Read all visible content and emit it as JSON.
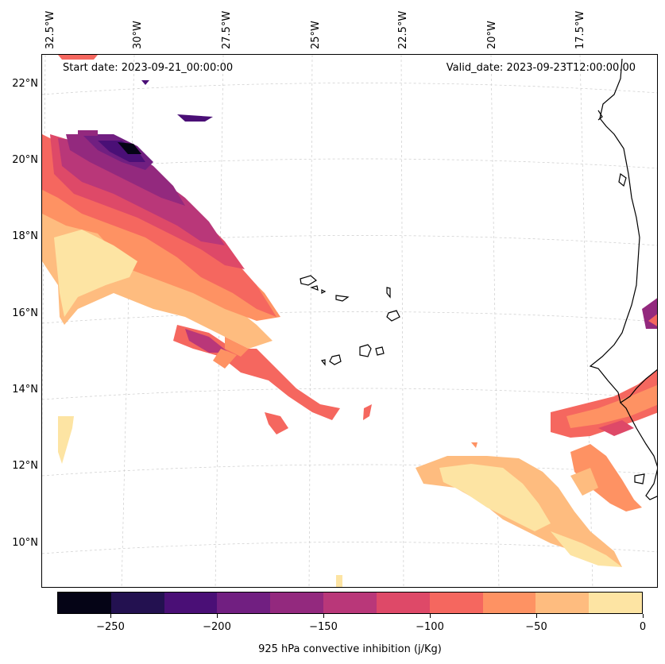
{
  "header": {
    "start_date": "Start date: 2023-09-21_00:00:00",
    "valid_date": "Valid_date: 2023-09-23T12:00:00.00"
  },
  "map": {
    "lon_ticks": [
      "32.5°W",
      "30°W",
      "27.5°W",
      "25°W",
      "22.5°W",
      "20°W",
      "17.5°W"
    ],
    "lat_ticks": [
      "22°N",
      "20°N",
      "18°N",
      "16°N",
      "14°N",
      "12°N",
      "10°N"
    ],
    "gridlines": true,
    "coastline_color": "#000000",
    "gridline_color": "#cccccc"
  },
  "colorbar": {
    "label": "925 hPa convective inhibition (j/Kg)",
    "tick_labels": [
      "−250",
      "−200",
      "−150",
      "−100",
      "−50",
      "0"
    ],
    "tick_values": [
      -250,
      -200,
      -150,
      -100,
      -50,
      0
    ],
    "range": [
      -275,
      0
    ],
    "colormap": "magma",
    "colors": [
      "#050416",
      "#231150",
      "#4a0f76",
      "#711f81",
      "#93297e",
      "#b93779",
      "#de4968",
      "#f5675f",
      "#fe9263",
      "#febc7f",
      "#fde4a3"
    ]
  }
}
